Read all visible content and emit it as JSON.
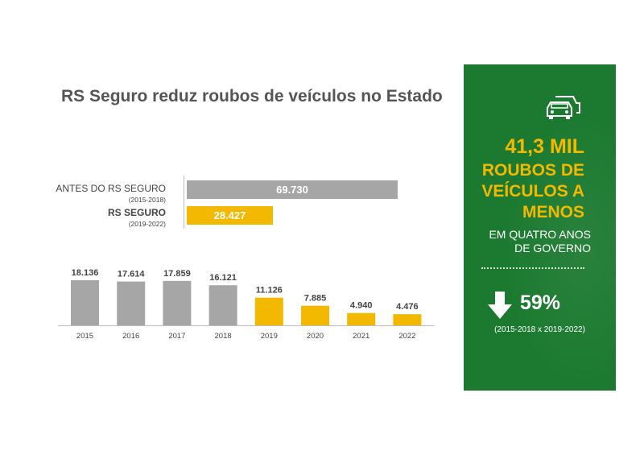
{
  "title": "RS Seguro reduz roubos de veículos no Estado",
  "colors": {
    "gray": "#a6a6a6",
    "yellow": "#f3b800",
    "green": "#1c7a30",
    "text": "#444444"
  },
  "summary": {
    "icon": "car-icon",
    "big_number": "41,3 MIL",
    "line1": "ROUBOS DE",
    "line2": "VEÍCULOS A",
    "line3": "MENOS",
    "sub1": "EM QUATRO ANOS",
    "sub2": "DE GOVERNO",
    "arrow_icon": "arrow-down-icon",
    "percent": "59%",
    "range": "(2015-2018 x 2019-2022)"
  },
  "chart_data": [
    {
      "type": "bar",
      "orientation": "horizontal",
      "categories": [
        "ANTES DO RS SEGURO",
        "RS SEGURO"
      ],
      "sublabels": [
        "(2015-2018)",
        "(2019-2022)"
      ],
      "values": [
        69730,
        28427
      ],
      "value_labels": [
        "69.730",
        "28.427"
      ],
      "colors": [
        "#a6a6a6",
        "#f3b800"
      ]
    },
    {
      "type": "bar",
      "categories": [
        "2015",
        "2016",
        "2017",
        "2018",
        "2019",
        "2020",
        "2021",
        "2022"
      ],
      "values": [
        18136,
        17614,
        17859,
        16121,
        11126,
        7885,
        4940,
        4476
      ],
      "value_labels": [
        "18.136",
        "17.614",
        "17.859",
        "16.121",
        "11.126",
        "7.885",
        "4.940",
        "4.476"
      ],
      "colors": [
        "#a6a6a6",
        "#a6a6a6",
        "#a6a6a6",
        "#a6a6a6",
        "#f3b800",
        "#f3b800",
        "#f3b800",
        "#f3b800"
      ]
    }
  ]
}
